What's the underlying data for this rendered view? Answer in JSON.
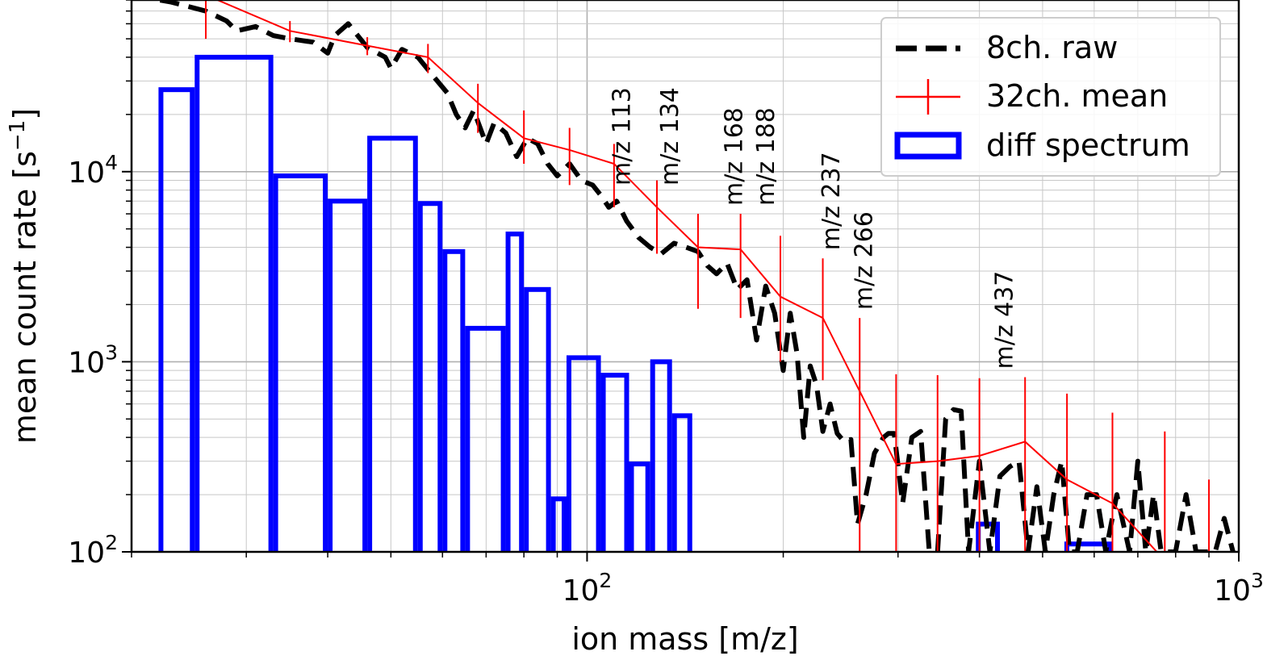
{
  "chart_data": {
    "type": "line",
    "xscale": "log",
    "yscale": "log",
    "xlim": [
      20,
      1000
    ],
    "ylim": [
      100,
      80000
    ],
    "xlabel": "ion mass [m/z]",
    "ylabel": "mean count rate [s",
    "ylabel_sup": "−1",
    "ylabel_suffix": "]",
    "grid": true,
    "legend_position": "top-right",
    "x_ticks": [
      {
        "base": "10",
        "exp": "2",
        "value": 100
      },
      {
        "base": "10",
        "exp": "3",
        "value": 1000
      }
    ],
    "y_ticks": [
      {
        "base": "10",
        "exp": "2",
        "value": 100
      },
      {
        "base": "10",
        "exp": "3",
        "value": 1000
      },
      {
        "base": "10",
        "exp": "4",
        "value": 10000
      }
    ],
    "series": [
      {
        "name": "8ch. raw",
        "style": "dashed",
        "color": "#000000",
        "x": [
          20,
          23,
          26,
          28,
          29,
          31,
          33,
          35,
          38,
          40,
          41,
          43,
          46,
          49,
          50,
          52,
          55,
          58,
          61,
          63,
          65,
          67,
          70,
          72,
          75,
          78,
          81,
          84,
          87,
          90,
          94,
          98,
          102,
          105,
          108,
          111,
          115,
          120,
          125,
          130,
          136,
          142,
          148,
          153,
          158,
          164,
          170,
          176,
          182,
          188,
          194,
          200,
          205,
          210,
          215,
          220,
          225,
          230,
          236,
          242,
          248,
          254,
          260,
          268,
          276,
          285,
          290,
          296,
          305,
          315,
          325,
          335,
          345,
          355,
          365,
          375,
          385,
          400,
          415,
          430,
          445,
          460,
          475,
          490,
          505,
          520,
          535,
          550,
          565,
          585,
          605,
          625,
          650,
          680,
          700,
          720,
          740,
          760,
          780,
          800,
          830,
          860,
          890,
          920,
          950,
          980
        ],
        "y": [
          85000,
          78000,
          70000,
          62000,
          55000,
          58000,
          52000,
          50000,
          48000,
          42000,
          52000,
          60000,
          45000,
          40000,
          35000,
          44000,
          40000,
          32000,
          26000,
          20000,
          17000,
          21000,
          14000,
          18000,
          16000,
          12000,
          15000,
          14000,
          11000,
          9500,
          11000,
          9000,
          8500,
          7500,
          6500,
          7000,
          5500,
          4500,
          4000,
          3700,
          4200,
          4000,
          3800,
          3200,
          2900,
          3300,
          2400,
          2700,
          1300,
          2500,
          1800,
          900,
          1800,
          1100,
          400,
          950,
          750,
          430,
          600,
          420,
          380,
          390,
          140,
          200,
          330,
          400,
          420,
          420,
          180,
          400,
          430,
          100,
          100,
          500,
          560,
          550,
          100,
          300,
          100,
          250,
          280,
          300,
          100,
          220,
          100,
          200,
          300,
          100,
          100,
          200,
          200,
          100,
          200,
          100,
          300,
          100,
          200,
          100,
          100,
          100,
          200,
          100,
          100,
          100,
          150,
          100
        ]
      },
      {
        "name": "32ch. mean",
        "style": "solid",
        "color": "#ff0000",
        "markers": "vertical-error-bars",
        "x": [
          26,
          35,
          46,
          57,
          68,
          80,
          94,
          110,
          128,
          148,
          172,
          198,
          230,
          262,
          298,
          345,
          400,
          470,
          545,
          640,
          770,
          900
        ],
        "y": [
          85000,
          55000,
          46000,
          40000,
          23000,
          15000,
          13000,
          11000,
          6500,
          4000,
          3900,
          2200,
          1700,
          700,
          290,
          300,
          320,
          380,
          240,
          180,
          90,
          60
        ],
        "err_low": [
          50000,
          48000,
          41000,
          33000,
          16000,
          11000,
          8500,
          6500,
          3700,
          1900,
          1700,
          1000,
          800,
          100,
          100,
          100,
          100,
          100,
          100,
          100,
          60,
          50
        ],
        "err_high": [
          95000,
          62000,
          51000,
          47000,
          29000,
          21000,
          17000,
          14000,
          9000,
          6000,
          6000,
          4600,
          3500,
          1700,
          860,
          850,
          820,
          830,
          680,
          540,
          430,
          240
        ]
      },
      {
        "name": "diff spectrum",
        "style": "step-outline",
        "color": "#0000ff",
        "x": [
          22,
          25,
          33,
          40,
          46,
          55,
          60,
          65,
          75,
          80,
          88,
          93,
          105,
          116,
          125,
          135,
          145,
          165,
          175,
          190,
          210,
          240,
          265,
          295,
          320,
          395,
          430,
          470,
          540,
          640,
          720
        ],
        "values": [
          27000,
          40000,
          9500,
          7000,
          15000,
          6800,
          3800,
          1500,
          4700,
          2400,
          190,
          1050,
          850,
          290,
          1000,
          520,
          100,
          100,
          100,
          100,
          100,
          100,
          100,
          100,
          100,
          140,
          100,
          100,
          110,
          100,
          100
        ]
      }
    ],
    "annotations": [
      {
        "text": "m/z 113",
        "x": 113
      },
      {
        "text": "m/z 134",
        "x": 134
      },
      {
        "text": "m/z 168",
        "x": 168
      },
      {
        "text": "m/z 188",
        "x": 188
      },
      {
        "text": "m/z 237",
        "x": 237
      },
      {
        "text": "m/z 266",
        "x": 266
      },
      {
        "text": "m/z 437",
        "x": 437
      }
    ]
  }
}
